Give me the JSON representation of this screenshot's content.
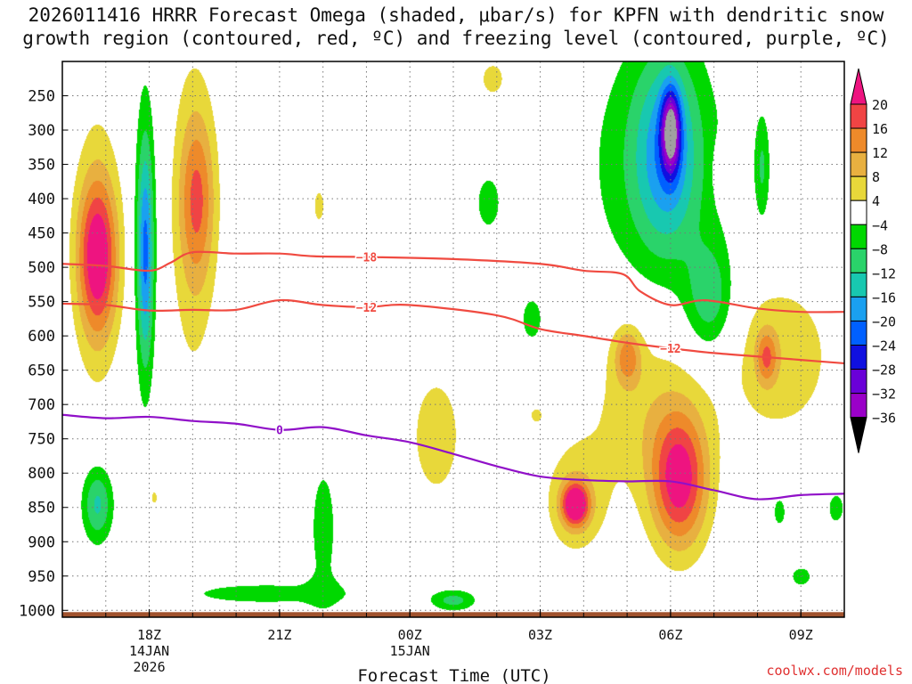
{
  "title_line1": "2026011416 HRRR Forecast Omega (shaded, μbar/s) for KPFN with dendritic snow",
  "title_line2": "growth region (contoured, red, ºC) and freezing level (contoured, purple, ºC)",
  "credit": "coolwx.com/models",
  "chart_data": {
    "type": "heatmap",
    "title": "2026011416 HRRR Forecast Omega (shaded, μbar/s) for KPFN with dendritic snow growth region (contoured, red, ºC) and freezing level (contoured, purple, ºC)",
    "xlabel": "Forecast Time (UTC)",
    "ylabel": "",
    "x_unit": "hours from 2026-01-14 16Z",
    "xlim": [
      0,
      18
    ],
    "ylim_pressure_hpa": [
      1010,
      200
    ],
    "x_ticks": [
      {
        "x": 2,
        "label": "18Z",
        "sub1": "14JAN",
        "sub2": "2026"
      },
      {
        "x": 5,
        "label": "21Z",
        "sub1": "",
        "sub2": ""
      },
      {
        "x": 8,
        "label": "00Z",
        "sub1": "15JAN",
        "sub2": ""
      },
      {
        "x": 11,
        "label": "03Z",
        "sub1": "",
        "sub2": ""
      },
      {
        "x": 14,
        "label": "06Z",
        "sub1": "",
        "sub2": ""
      },
      {
        "x": 17,
        "label": "09Z",
        "sub1": "",
        "sub2": ""
      }
    ],
    "y_ticks": [
      250,
      300,
      350,
      400,
      450,
      500,
      550,
      600,
      650,
      700,
      750,
      800,
      850,
      900,
      950,
      1000
    ],
    "colorbar": {
      "labels": [
        "20",
        "16",
        "12",
        "8",
        "4",
        "−4",
        "−8",
        "−12",
        "−16",
        "−20",
        "−24",
        "−28",
        "−32",
        "−36"
      ],
      "levels": [
        -36,
        -32,
        -28,
        -24,
        -20,
        -16,
        -12,
        -8,
        -4,
        4,
        8,
        12,
        16,
        20
      ],
      "colors": [
        "#a0a0a0",
        "#9a00c8",
        "#6a00d8",
        "#1010e0",
        "#0060ff",
        "#1aa0f0",
        "#18c8b0",
        "#2ad36a",
        "#00d800",
        "#ffffff",
        "#e8d83a",
        "#e8b040",
        "#ee8a2a",
        "#f04444",
        "#ee1480"
      ],
      "top_color": "#ee1480",
      "bottom_color": "#000000"
    },
    "omega_features": [
      {
        "t": 0.8,
        "p": 485,
        "v": 20,
        "st": 0.45,
        "sp": 110
      },
      {
        "t": 0.8,
        "p": 470,
        "v": 6,
        "st": 0.55,
        "sp": 220
      },
      {
        "t": 0.8,
        "p": 845,
        "v": -13,
        "st": 0.35,
        "sp": 55
      },
      {
        "t": 1.9,
        "p": 480,
        "v": -16,
        "st": 0.18,
        "sp": 150
      },
      {
        "t": 1.9,
        "p": 450,
        "v": -6,
        "st": 0.28,
        "sp": 260
      },
      {
        "t": 2.1,
        "p": 835,
        "v": 5,
        "st": 0.15,
        "sp": 20
      },
      {
        "t": 3.1,
        "p": 400,
        "v": 12,
        "st": 0.4,
        "sp": 120
      },
      {
        "t": 3.0,
        "p": 430,
        "v": 6,
        "st": 0.55,
        "sp": 270
      },
      {
        "t": 5.9,
        "p": 410,
        "v": 5,
        "st": 0.2,
        "sp": 40
      },
      {
        "t": 4.7,
        "p": 975,
        "v": -5,
        "st": 3.2,
        "sp": 25
      },
      {
        "t": 6.0,
        "p": 880,
        "v": -6,
        "st": 0.35,
        "sp": 110
      },
      {
        "t": 8.6,
        "p": 745,
        "v": 6,
        "st": 0.7,
        "sp": 110
      },
      {
        "t": 9.0,
        "p": 985,
        "v": -9,
        "st": 0.5,
        "sp": 15
      },
      {
        "t": 9.9,
        "p": 225,
        "v": 5,
        "st": 0.45,
        "sp": 40
      },
      {
        "t": 9.8,
        "p": 405,
        "v": -6,
        "st": 0.35,
        "sp": 50
      },
      {
        "t": 10.8,
        "p": 575,
        "v": -6,
        "st": 0.3,
        "sp": 40
      },
      {
        "t": 10.9,
        "p": 715,
        "v": 5,
        "st": 0.2,
        "sp": 15
      },
      {
        "t": 11.8,
        "p": 845,
        "v": 24,
        "st": 0.3,
        "sp": 30
      },
      {
        "t": 11.8,
        "p": 840,
        "v": 7,
        "st": 0.75,
        "sp": 85
      },
      {
        "t": 13.7,
        "p": 350,
        "v": -8,
        "st": 1.6,
        "sp": 190
      },
      {
        "t": 14.0,
        "p": 300,
        "v": -25,
        "st": 0.22,
        "sp": 60
      },
      {
        "t": 13.9,
        "p": 330,
        "v": -13,
        "st": 0.7,
        "sp": 140
      },
      {
        "t": 14.9,
        "p": 545,
        "v": -11,
        "st": 0.55,
        "sp": 80
      },
      {
        "t": 15.2,
        "p": 360,
        "v": 7,
        "st": 0.2,
        "sp": 40
      },
      {
        "t": 16.1,
        "p": 355,
        "v": -8,
        "st": 0.18,
        "sp": 80
      },
      {
        "t": 14.2,
        "p": 810,
        "v": 22,
        "st": 0.65,
        "sp": 100
      },
      {
        "t": 13.3,
        "p": 700,
        "v": 6,
        "st": 1.3,
        "sp": 140
      },
      {
        "t": 13.0,
        "p": 630,
        "v": 12,
        "st": 0.3,
        "sp": 40
      },
      {
        "t": 16.5,
        "p": 630,
        "v": 6,
        "st": 1.5,
        "sp": 140
      },
      {
        "t": 16.2,
        "p": 630,
        "v": 12,
        "st": 0.25,
        "sp": 40
      },
      {
        "t": 16.5,
        "p": 855,
        "v": -6,
        "st": 0.2,
        "sp": 30
      },
      {
        "t": 17.8,
        "p": 850,
        "v": -6,
        "st": 0.25,
        "sp": 30
      },
      {
        "t": 17.0,
        "p": 950,
        "v": -6,
        "st": 0.3,
        "sp": 18
      }
    ],
    "isotherm_minus18": {
      "label": "−18",
      "label_t": 7.0,
      "color": "#f04a40",
      "points": [
        [
          0,
          495
        ],
        [
          1,
          498
        ],
        [
          2,
          505
        ],
        [
          2.5,
          493
        ],
        [
          3,
          478
        ],
        [
          4,
          480
        ],
        [
          5,
          480
        ],
        [
          5.8,
          484
        ],
        [
          7,
          485
        ],
        [
          9,
          488
        ],
        [
          11,
          495
        ],
        [
          12,
          505
        ],
        [
          12.9,
          510
        ],
        [
          13.3,
          535
        ],
        [
          14,
          555
        ],
        [
          14.8,
          548
        ],
        [
          16,
          560
        ],
        [
          17,
          565
        ],
        [
          18,
          565
        ]
      ]
    },
    "isotherm_minus12": {
      "label": "−12",
      "label_t": 7.0,
      "color": "#f04a40",
      "points": [
        [
          0,
          553
        ],
        [
          1,
          555
        ],
        [
          2,
          563
        ],
        [
          3,
          562
        ],
        [
          4,
          562
        ],
        [
          5,
          548
        ],
        [
          6,
          555
        ],
        [
          7,
          558
        ],
        [
          8,
          555
        ],
        [
          10,
          570
        ],
        [
          11,
          590
        ],
        [
          12,
          600
        ],
        [
          13,
          610
        ],
        [
          14,
          618
        ],
        [
          15,
          625
        ],
        [
          16,
          630
        ],
        [
          17,
          635
        ],
        [
          18,
          640
        ]
      ]
    },
    "freezing_level": {
      "label": "0",
      "label_t": 5.0,
      "color": "#9010c8",
      "points": [
        [
          0,
          715
        ],
        [
          1,
          720
        ],
        [
          2,
          718
        ],
        [
          3,
          724
        ],
        [
          4,
          728
        ],
        [
          5,
          737
        ],
        [
          6,
          733
        ],
        [
          7,
          745
        ],
        [
          8,
          755
        ],
        [
          9,
          772
        ],
        [
          10,
          790
        ],
        [
          11,
          805
        ],
        [
          12,
          810
        ],
        [
          13,
          812
        ],
        [
          14,
          812
        ],
        [
          15,
          825
        ],
        [
          16,
          838
        ],
        [
          17,
          832
        ],
        [
          18,
          830
        ]
      ]
    },
    "ground_color": "#a0522d"
  }
}
